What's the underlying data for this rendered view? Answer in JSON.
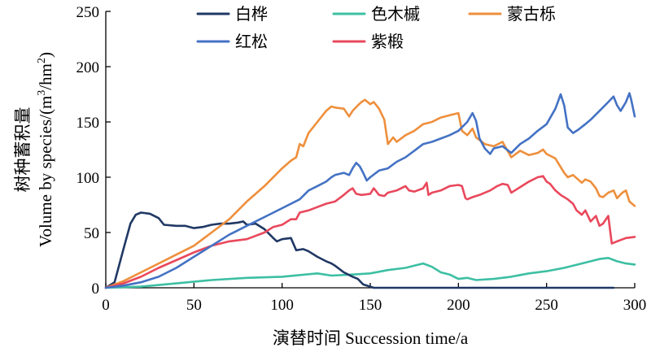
{
  "chart_data": {
    "type": "line",
    "title": "",
    "xlabel": "演替时间 Succession time/a",
    "ylabel_cn": "树种蓄积量",
    "ylabel_en_prefix": "Volume by species/(m",
    "ylabel_sup1": "3",
    "ylabel_mid": "/hm",
    "ylabel_sup2": "2",
    "ylabel_suffix": ")",
    "xlim": [
      0,
      300
    ],
    "ylim": [
      0,
      250
    ],
    "x_ticks": [
      "0",
      "50",
      "100",
      "150",
      "200",
      "250",
      "300"
    ],
    "y_ticks": [
      "0",
      "50",
      "100",
      "150",
      "200",
      "250"
    ],
    "grid": false,
    "legend_position": "top",
    "series": [
      {
        "name": "白桦",
        "color": "#203864",
        "points": [
          [
            0,
            0
          ],
          [
            5,
            5
          ],
          [
            10,
            35
          ],
          [
            14,
            58
          ],
          [
            17,
            66
          ],
          [
            20,
            68
          ],
          [
            25,
            67
          ],
          [
            30,
            63
          ],
          [
            33,
            57
          ],
          [
            40,
            56
          ],
          [
            45,
            56
          ],
          [
            50,
            54
          ],
          [
            55,
            55
          ],
          [
            60,
            57
          ],
          [
            65,
            58
          ],
          [
            70,
            58
          ],
          [
            75,
            59
          ],
          [
            78,
            60
          ],
          [
            80,
            57
          ],
          [
            85,
            58
          ],
          [
            90,
            53
          ],
          [
            95,
            45
          ],
          [
            97,
            42
          ],
          [
            100,
            44
          ],
          [
            105,
            45
          ],
          [
            108,
            34
          ],
          [
            112,
            35
          ],
          [
            115,
            33
          ],
          [
            120,
            28
          ],
          [
            125,
            24
          ],
          [
            128,
            22
          ],
          [
            130,
            20
          ],
          [
            135,
            14
          ],
          [
            140,
            10
          ],
          [
            143,
            8
          ],
          [
            146,
            3
          ],
          [
            148,
            2
          ],
          [
            150,
            1
          ],
          [
            152,
            0
          ],
          [
            160,
            0
          ],
          [
            200,
            0
          ],
          [
            250,
            0
          ],
          [
            288,
            0
          ]
        ]
      },
      {
        "name": "色木槭",
        "color": "#3dbfa3",
        "points": [
          [
            0,
            0
          ],
          [
            20,
            1
          ],
          [
            40,
            4
          ],
          [
            60,
            7
          ],
          [
            80,
            9
          ],
          [
            100,
            10
          ],
          [
            120,
            13
          ],
          [
            128,
            11
          ],
          [
            140,
            12
          ],
          [
            150,
            13
          ],
          [
            160,
            16
          ],
          [
            170,
            18
          ],
          [
            180,
            22
          ],
          [
            185,
            19
          ],
          [
            190,
            14
          ],
          [
            195,
            12
          ],
          [
            200,
            8
          ],
          [
            205,
            9
          ],
          [
            210,
            7
          ],
          [
            220,
            8
          ],
          [
            230,
            10
          ],
          [
            240,
            13
          ],
          [
            250,
            15
          ],
          [
            260,
            18
          ],
          [
            270,
            22
          ],
          [
            280,
            26
          ],
          [
            285,
            27
          ],
          [
            290,
            24
          ],
          [
            295,
            22
          ],
          [
            300,
            21
          ]
        ]
      },
      {
        "name": "蒙古栎",
        "color": "#ee8f3c",
        "points": [
          [
            0,
            0
          ],
          [
            10,
            6
          ],
          [
            20,
            14
          ],
          [
            30,
            22
          ],
          [
            40,
            30
          ],
          [
            50,
            38
          ],
          [
            60,
            50
          ],
          [
            70,
            62
          ],
          [
            80,
            78
          ],
          [
            90,
            92
          ],
          [
            100,
            108
          ],
          [
            105,
            115
          ],
          [
            108,
            118
          ],
          [
            110,
            130
          ],
          [
            112,
            128
          ],
          [
            115,
            140
          ],
          [
            120,
            150
          ],
          [
            125,
            160
          ],
          [
            128,
            164
          ],
          [
            130,
            163
          ],
          [
            135,
            162
          ],
          [
            138,
            155
          ],
          [
            140,
            160
          ],
          [
            143,
            165
          ],
          [
            145,
            168
          ],
          [
            147,
            170
          ],
          [
            150,
            166
          ],
          [
            152,
            168
          ],
          [
            155,
            162
          ],
          [
            158,
            152
          ],
          [
            160,
            130
          ],
          [
            163,
            136
          ],
          [
            165,
            132
          ],
          [
            170,
            138
          ],
          [
            175,
            142
          ],
          [
            180,
            148
          ],
          [
            185,
            150
          ],
          [
            190,
            154
          ],
          [
            195,
            156
          ],
          [
            200,
            158
          ],
          [
            202,
            142
          ],
          [
            205,
            138
          ],
          [
            208,
            144
          ],
          [
            210,
            136
          ],
          [
            215,
            130
          ],
          [
            220,
            128
          ],
          [
            225,
            132
          ],
          [
            230,
            118
          ],
          [
            235,
            124
          ],
          [
            240,
            120
          ],
          [
            245,
            122
          ],
          [
            248,
            125
          ],
          [
            250,
            121
          ],
          [
            255,
            117
          ],
          [
            260,
            104
          ],
          [
            262,
            100
          ],
          [
            265,
            102
          ],
          [
            270,
            95
          ],
          [
            272,
            98
          ],
          [
            275,
            96
          ],
          [
            278,
            90
          ],
          [
            280,
            83
          ],
          [
            282,
            82
          ],
          [
            285,
            86
          ],
          [
            288,
            88
          ],
          [
            290,
            81
          ],
          [
            293,
            86
          ],
          [
            295,
            88
          ],
          [
            297,
            78
          ],
          [
            300,
            74
          ]
        ]
      },
      {
        "name": "红松",
        "color": "#4472c4",
        "points": [
          [
            0,
            0
          ],
          [
            10,
            2
          ],
          [
            20,
            5
          ],
          [
            30,
            10
          ],
          [
            40,
            18
          ],
          [
            50,
            28
          ],
          [
            60,
            38
          ],
          [
            70,
            48
          ],
          [
            75,
            52
          ],
          [
            80,
            56
          ],
          [
            90,
            64
          ],
          [
            100,
            72
          ],
          [
            110,
            80
          ],
          [
            115,
            88
          ],
          [
            120,
            92
          ],
          [
            125,
            96
          ],
          [
            128,
            100
          ],
          [
            130,
            102
          ],
          [
            135,
            104
          ],
          [
            138,
            102
          ],
          [
            140,
            108
          ],
          [
            142,
            113
          ],
          [
            144,
            110
          ],
          [
            146,
            104
          ],
          [
            148,
            97
          ],
          [
            150,
            100
          ],
          [
            155,
            106
          ],
          [
            160,
            108
          ],
          [
            165,
            114
          ],
          [
            170,
            118
          ],
          [
            175,
            124
          ],
          [
            180,
            130
          ],
          [
            185,
            132
          ],
          [
            190,
            135
          ],
          [
            195,
            138
          ],
          [
            200,
            142
          ],
          [
            205,
            150
          ],
          [
            208,
            158
          ],
          [
            210,
            151
          ],
          [
            212,
            135
          ],
          [
            215,
            126
          ],
          [
            218,
            121
          ],
          [
            220,
            126
          ],
          [
            225,
            128
          ],
          [
            230,
            122
          ],
          [
            235,
            130
          ],
          [
            240,
            135
          ],
          [
            245,
            142
          ],
          [
            250,
            148
          ],
          [
            255,
            162
          ],
          [
            258,
            175
          ],
          [
            260,
            165
          ],
          [
            262,
            145
          ],
          [
            265,
            140
          ],
          [
            268,
            143
          ],
          [
            272,
            148
          ],
          [
            275,
            152
          ],
          [
            280,
            160
          ],
          [
            285,
            168
          ],
          [
            288,
            173
          ],
          [
            290,
            165
          ],
          [
            292,
            160
          ],
          [
            295,
            168
          ],
          [
            297,
            176
          ],
          [
            298,
            170
          ],
          [
            300,
            155
          ]
        ]
      },
      {
        "name": "紫椴",
        "color": "#e9485c",
        "points": [
          [
            0,
            0
          ],
          [
            10,
            4
          ],
          [
            20,
            10
          ],
          [
            30,
            18
          ],
          [
            40,
            25
          ],
          [
            50,
            32
          ],
          [
            60,
            38
          ],
          [
            70,
            42
          ],
          [
            80,
            44
          ],
          [
            90,
            50
          ],
          [
            95,
            55
          ],
          [
            100,
            57
          ],
          [
            105,
            62
          ],
          [
            108,
            62
          ],
          [
            110,
            68
          ],
          [
            115,
            70
          ],
          [
            120,
            73
          ],
          [
            125,
            76
          ],
          [
            130,
            78
          ],
          [
            135,
            84
          ],
          [
            138,
            88
          ],
          [
            140,
            90
          ],
          [
            142,
            85
          ],
          [
            145,
            84
          ],
          [
            150,
            85
          ],
          [
            152,
            90
          ],
          [
            155,
            84
          ],
          [
            158,
            83
          ],
          [
            160,
            86
          ],
          [
            165,
            88
          ],
          [
            170,
            92
          ],
          [
            172,
            88
          ],
          [
            175,
            87
          ],
          [
            180,
            90
          ],
          [
            182,
            95
          ],
          [
            183,
            84
          ],
          [
            185,
            86
          ],
          [
            190,
            88
          ],
          [
            195,
            92
          ],
          [
            200,
            93
          ],
          [
            202,
            92
          ],
          [
            204,
            81
          ],
          [
            205,
            80
          ],
          [
            208,
            82
          ],
          [
            212,
            84
          ],
          [
            218,
            88
          ],
          [
            222,
            92
          ],
          [
            225,
            94
          ],
          [
            228,
            93
          ],
          [
            230,
            86
          ],
          [
            232,
            88
          ],
          [
            236,
            92
          ],
          [
            240,
            96
          ],
          [
            245,
            100
          ],
          [
            248,
            101
          ],
          [
            250,
            96
          ],
          [
            252,
            94
          ],
          [
            255,
            88
          ],
          [
            258,
            84
          ],
          [
            262,
            80
          ],
          [
            265,
            76
          ],
          [
            267,
            70
          ],
          [
            270,
            66
          ],
          [
            272,
            70
          ],
          [
            275,
            60
          ],
          [
            278,
            65
          ],
          [
            280,
            56
          ],
          [
            282,
            58
          ],
          [
            285,
            65
          ],
          [
            287,
            40
          ],
          [
            290,
            42
          ],
          [
            295,
            45
          ],
          [
            300,
            46
          ]
        ]
      }
    ]
  }
}
